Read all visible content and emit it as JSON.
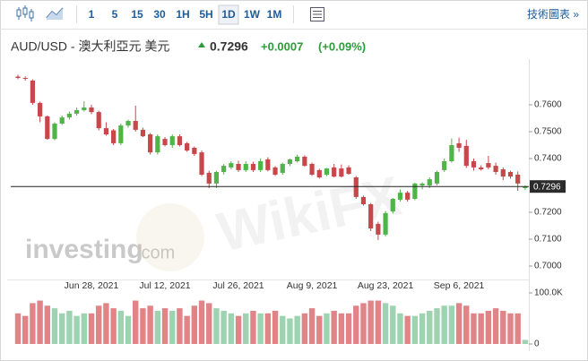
{
  "toolbar": {
    "intervals": [
      "1",
      "5",
      "15",
      "30",
      "1H",
      "5H",
      "1D",
      "1W",
      "1M"
    ],
    "selected_interval": "1D",
    "link": "技術圖表 »"
  },
  "header": {
    "title": "AUD/USD - 澳大利亞元 美元",
    "price": 0.7296,
    "change": {
      "value": 0.0007,
      "label": "+0.0007"
    },
    "change_pct": {
      "value": 0.09,
      "label": "(+0.09%)"
    }
  },
  "watermarks": {
    "logo": [
      "investing",
      ".com"
    ],
    "brand": "WikiFX"
  },
  "chart_data": {
    "type": "candlestick",
    "categories": [
      null,
      null,
      null,
      null,
      null,
      null,
      null,
      null,
      null,
      null,
      "Jun 28, 2021",
      null,
      null,
      null,
      null,
      null,
      null,
      null,
      null,
      null,
      "Jul 12, 2021",
      null,
      null,
      null,
      null,
      null,
      null,
      null,
      null,
      null,
      "Jul 26, 2021",
      null,
      null,
      null,
      null,
      null,
      null,
      null,
      null,
      null,
      "Aug 9, 2021",
      null,
      null,
      null,
      null,
      null,
      null,
      null,
      null,
      null,
      "Aug 23, 2021",
      null,
      null,
      null,
      null,
      null,
      null,
      null,
      null,
      null,
      "Sep 6, 2021",
      null,
      null,
      null,
      null,
      null,
      null,
      null,
      null,
      null
    ],
    "open": [
      0.7705,
      0.77,
      0.769,
      0.7607,
      0.7557,
      0.7473,
      0.753,
      0.7553,
      0.7567,
      0.758,
      0.759,
      0.7573,
      0.7513,
      0.7505,
      0.7457,
      0.7523,
      0.754,
      0.7507,
      0.749,
      0.7423,
      0.7473,
      0.745,
      0.7483,
      0.7457,
      0.744,
      0.7423,
      0.7347,
      0.7307,
      0.735,
      0.7367,
      0.738,
      0.7357,
      0.738,
      0.7357,
      0.7397,
      0.7367,
      0.7347,
      0.738,
      0.739,
      0.7407,
      0.738,
      0.7357,
      0.734,
      0.7367,
      0.7363,
      0.7367,
      0.733,
      0.7257,
      0.723,
      0.7157,
      0.7117,
      0.7203,
      0.7247,
      0.7273,
      0.725,
      0.73,
      0.73,
      0.7307,
      0.7357,
      0.739,
      0.7457,
      0.7447,
      0.739,
      0.7367,
      0.7383,
      0.7373,
      0.736,
      0.735,
      0.734,
      0.729
    ],
    "high": [
      0.7712,
      0.7706,
      0.7695,
      0.7612,
      0.756,
      0.7535,
      0.756,
      0.7575,
      0.759,
      0.7613,
      0.76,
      0.7578,
      0.7535,
      0.751,
      0.753,
      0.7545,
      0.7597,
      0.7515,
      0.7495,
      0.749,
      0.748,
      0.749,
      0.749,
      0.7462,
      0.7445,
      0.743,
      0.7355,
      0.7355,
      0.738,
      0.739,
      0.7392,
      0.739,
      0.7388,
      0.74,
      0.7405,
      0.7372,
      0.7385,
      0.74,
      0.7415,
      0.7412,
      0.7385,
      0.7362,
      0.7365,
      0.738,
      0.7378,
      0.7375,
      0.7335,
      0.7262,
      0.7235,
      0.7165,
      0.7205,
      0.7253,
      0.7285,
      0.728,
      0.731,
      0.7312,
      0.733,
      0.7355,
      0.74,
      0.7475,
      0.7478,
      0.747,
      0.74,
      0.7375,
      0.741,
      0.7385,
      0.7367,
      0.7355,
      0.7352,
      0.73
    ],
    "low": [
      0.7695,
      0.769,
      0.76,
      0.7535,
      0.747,
      0.7468,
      0.7525,
      0.7545,
      0.756,
      0.7575,
      0.7565,
      0.7505,
      0.7485,
      0.745,
      0.745,
      0.7515,
      0.75,
      0.748,
      0.7415,
      0.7415,
      0.7445,
      0.744,
      0.7445,
      0.7425,
      0.741,
      0.7335,
      0.729,
      0.729,
      0.734,
      0.736,
      0.735,
      0.735,
      0.735,
      0.735,
      0.7352,
      0.7335,
      0.734,
      0.7372,
      0.7385,
      0.737,
      0.7335,
      0.7325,
      0.7335,
      0.733,
      0.733,
      0.734,
      0.725,
      0.7225,
      0.713,
      0.7097,
      0.711,
      0.7195,
      0.724,
      0.724,
      0.7245,
      0.7285,
      0.729,
      0.73,
      0.735,
      0.7385,
      0.7425,
      0.7365,
      0.7355,
      0.7355,
      0.736,
      0.734,
      0.732,
      0.7325,
      0.728,
      0.7283
    ],
    "close": [
      0.77,
      0.7697,
      0.7607,
      0.7557,
      0.7473,
      0.753,
      0.7553,
      0.7567,
      0.758,
      0.759,
      0.7573,
      0.7513,
      0.749,
      0.7457,
      0.7523,
      0.754,
      0.7507,
      0.7483,
      0.7423,
      0.7483,
      0.745,
      0.7483,
      0.745,
      0.743,
      0.7417,
      0.734,
      0.7307,
      0.735,
      0.7373,
      0.7383,
      0.7357,
      0.738,
      0.7357,
      0.739,
      0.7357,
      0.734,
      0.738,
      0.7397,
      0.7407,
      0.7373,
      0.734,
      0.733,
      0.7363,
      0.7333,
      0.7333,
      0.7343,
      0.7257,
      0.723,
      0.714,
      0.7117,
      0.7197,
      0.725,
      0.7273,
      0.7247,
      0.7307,
      0.7307,
      0.7323,
      0.735,
      0.739,
      0.745,
      0.744,
      0.7373,
      0.7367,
      0.736,
      0.7367,
      0.735,
      0.7333,
      0.7333,
      0.7307,
      0.7296
    ],
    "up_color": "#4fb548",
    "down_color": "#c8474b",
    "ylim": [
      0.696,
      0.774
    ],
    "yticks": [
      {
        "value": 0.7,
        "label": "0.7000"
      },
      {
        "value": 0.71,
        "label": "0.7100"
      },
      {
        "value": 0.72,
        "label": "0.7200"
      },
      {
        "value": 0.74,
        "label": "0.7400"
      },
      {
        "value": 0.75,
        "label": "0.7500"
      },
      {
        "value": 0.76,
        "label": "0.7600"
      }
    ],
    "last_price": 0.7296,
    "volume": {
      "values": [
        60000,
        55000,
        80000,
        85000,
        75000,
        70000,
        60000,
        65000,
        55000,
        60000,
        60000,
        75000,
        80000,
        70000,
        65000,
        55000,
        85000,
        70000,
        75000,
        65000,
        70000,
        65000,
        70000,
        55000,
        75000,
        85000,
        80000,
        70000,
        65000,
        60000,
        55000,
        60000,
        65000,
        60000,
        60000,
        65000,
        55000,
        50000,
        55000,
        60000,
        70000,
        55000,
        60000,
        65000,
        60000,
        60000,
        75000,
        80000,
        85000,
        85000,
        80000,
        75000,
        60000,
        55000,
        55000,
        60000,
        65000,
        70000,
        75000,
        75000,
        80000,
        75000,
        60000,
        60000,
        65000,
        70000,
        65000,
        60000,
        60000,
        8000
      ],
      "up_color": "#9dd3b0",
      "down_color": "#e08487",
      "ylim": [
        0,
        120000
      ],
      "yticks": [
        0,
        {
          "value": 100000,
          "label": "100.0K"
        }
      ]
    }
  }
}
